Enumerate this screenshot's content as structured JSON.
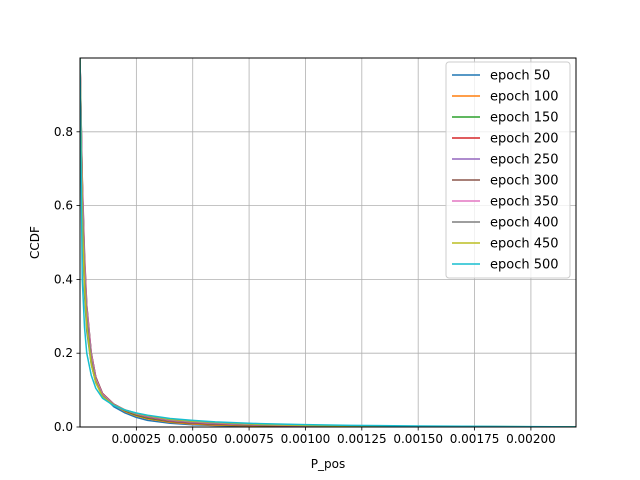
{
  "chart_data": {
    "type": "line",
    "title": "",
    "xlabel": "P_pos",
    "ylabel": "CCDF",
    "xlim": [
      0.0,
      0.0022
    ],
    "ylim": [
      0.0,
      1.0
    ],
    "x_ticks": [
      0.00025,
      0.0005,
      0.00075,
      0.001,
      0.00125,
      0.0015,
      0.00175,
      0.002
    ],
    "x_tick_labels": [
      "0.00025",
      "0.00050",
      "0.00075",
      "0.00100",
      "0.00125",
      "0.00150",
      "0.00175",
      "0.00200"
    ],
    "y_ticks": [
      0.0,
      0.2,
      0.4,
      0.6,
      0.8
    ],
    "y_tick_labels": [
      "0.0",
      "0.2",
      "0.4",
      "0.6",
      "0.8"
    ],
    "grid": true,
    "legend_position": "top-right",
    "x": [
      0.0,
      1e-05,
      2e-05,
      3e-05,
      5e-05,
      7e-05,
      0.0001,
      0.00015,
      0.0002,
      0.00025,
      0.0003,
      0.0004,
      0.0005,
      0.0006,
      0.0008,
      0.001,
      0.0012,
      0.0015,
      0.0018,
      0.002,
      0.0022
    ],
    "series": [
      {
        "name": "epoch 50",
        "color": "#1f77b4",
        "values": [
          1.0,
          0.55,
          0.36,
          0.26,
          0.17,
          0.12,
          0.085,
          0.055,
          0.038,
          0.026,
          0.018,
          0.01,
          0.006,
          0.004,
          0.002,
          0.001,
          0.0006,
          0.0003,
          0.0002,
          0.0001,
          0.0
        ]
      },
      {
        "name": "epoch 100",
        "color": "#ff7f0e",
        "values": [
          1.0,
          0.62,
          0.42,
          0.3,
          0.19,
          0.13,
          0.09,
          0.06,
          0.042,
          0.03,
          0.022,
          0.013,
          0.008,
          0.005,
          0.003,
          0.0018,
          0.0012,
          0.0007,
          0.0004,
          0.0002,
          0.0
        ]
      },
      {
        "name": "epoch 150",
        "color": "#2ca02c",
        "values": [
          1.0,
          0.64,
          0.44,
          0.31,
          0.19,
          0.13,
          0.09,
          0.061,
          0.044,
          0.032,
          0.024,
          0.015,
          0.01,
          0.007,
          0.004,
          0.0025,
          0.0015,
          0.0009,
          0.0005,
          0.0003,
          0.0001
        ]
      },
      {
        "name": "epoch 200",
        "color": "#d62728",
        "values": [
          1.0,
          0.66,
          0.45,
          0.32,
          0.2,
          0.135,
          0.091,
          0.062,
          0.045,
          0.034,
          0.026,
          0.016,
          0.011,
          0.008,
          0.0045,
          0.0028,
          0.0018,
          0.001,
          0.0006,
          0.0003,
          0.0001
        ]
      },
      {
        "name": "epoch 250",
        "color": "#9467bd",
        "values": [
          1.0,
          0.67,
          0.46,
          0.33,
          0.2,
          0.135,
          0.09,
          0.062,
          0.046,
          0.035,
          0.027,
          0.017,
          0.012,
          0.009,
          0.005,
          0.0032,
          0.002,
          0.0012,
          0.0007,
          0.0004,
          0.0002
        ]
      },
      {
        "name": "epoch 300",
        "color": "#8c564b",
        "values": [
          1.0,
          0.68,
          0.47,
          0.33,
          0.2,
          0.135,
          0.09,
          0.062,
          0.046,
          0.036,
          0.028,
          0.018,
          0.013,
          0.01,
          0.0055,
          0.0035,
          0.0023,
          0.0013,
          0.0008,
          0.0005,
          0.0002
        ]
      },
      {
        "name": "epoch 350",
        "color": "#e377c2",
        "values": [
          1.0,
          0.66,
          0.45,
          0.32,
          0.195,
          0.13,
          0.088,
          0.061,
          0.046,
          0.036,
          0.029,
          0.019,
          0.014,
          0.011,
          0.006,
          0.0038,
          0.0025,
          0.0014,
          0.0009,
          0.0005,
          0.0002
        ]
      },
      {
        "name": "epoch 400",
        "color": "#7f7f7f",
        "values": [
          1.0,
          0.62,
          0.42,
          0.3,
          0.185,
          0.125,
          0.085,
          0.06,
          0.046,
          0.037,
          0.03,
          0.02,
          0.015,
          0.012,
          0.0065,
          0.0042,
          0.0027,
          0.0015,
          0.001,
          0.0006,
          0.0003
        ]
      },
      {
        "name": "epoch 450",
        "color": "#bcbd22",
        "values": [
          1.0,
          0.56,
          0.38,
          0.27,
          0.17,
          0.12,
          0.082,
          0.059,
          0.046,
          0.037,
          0.031,
          0.021,
          0.016,
          0.013,
          0.007,
          0.0045,
          0.003,
          0.0017,
          0.0011,
          0.0007,
          0.0003
        ]
      },
      {
        "name": "epoch 500",
        "color": "#17becf",
        "values": [
          1.0,
          0.4,
          0.27,
          0.2,
          0.14,
          0.105,
          0.078,
          0.058,
          0.046,
          0.038,
          0.032,
          0.023,
          0.018,
          0.014,
          0.009,
          0.0065,
          0.0045,
          0.0028,
          0.0016,
          0.001,
          0.0005
        ]
      }
    ]
  }
}
